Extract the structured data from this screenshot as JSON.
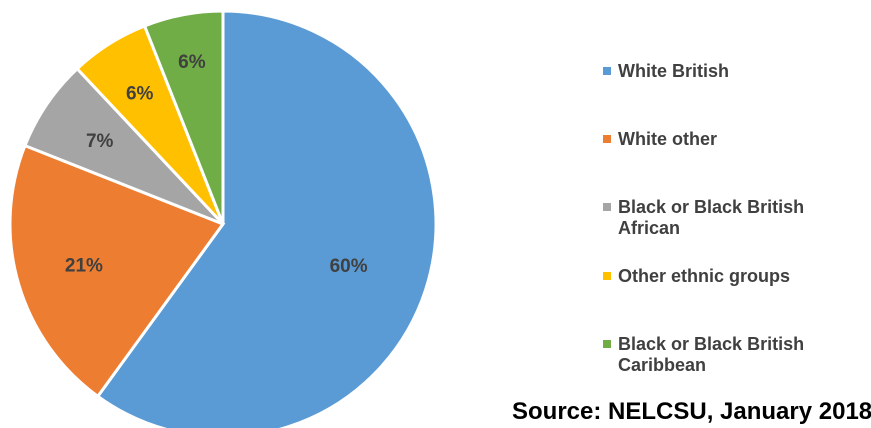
{
  "chart_data": {
    "type": "pie",
    "categories": [
      "White British",
      "White other",
      "Black or Black British African",
      "Other ethnic groups",
      "Black or Black British Caribbean"
    ],
    "values": [
      60,
      21,
      7,
      6,
      6
    ],
    "value_labels": [
      "60%",
      "21%",
      "7%",
      "6%",
      "6%"
    ],
    "colors": [
      "#5b9bd5",
      "#ed7d31",
      "#a5a5a5",
      "#ffc000",
      "#70ad47"
    ],
    "start_angle_deg": 0,
    "direction": "clockwise",
    "legend_position": "right",
    "legend": [
      {
        "line1": "White British",
        "line2": ""
      },
      {
        "line1": "White other",
        "line2": ""
      },
      {
        "line1": "Black or Black British",
        "line2": "African"
      },
      {
        "line1": "Other ethnic groups",
        "line2": ""
      },
      {
        "line1": "Black or Black British",
        "line2": "Caribbean"
      }
    ]
  },
  "source_text": "Source: NELCSU, January 2018"
}
